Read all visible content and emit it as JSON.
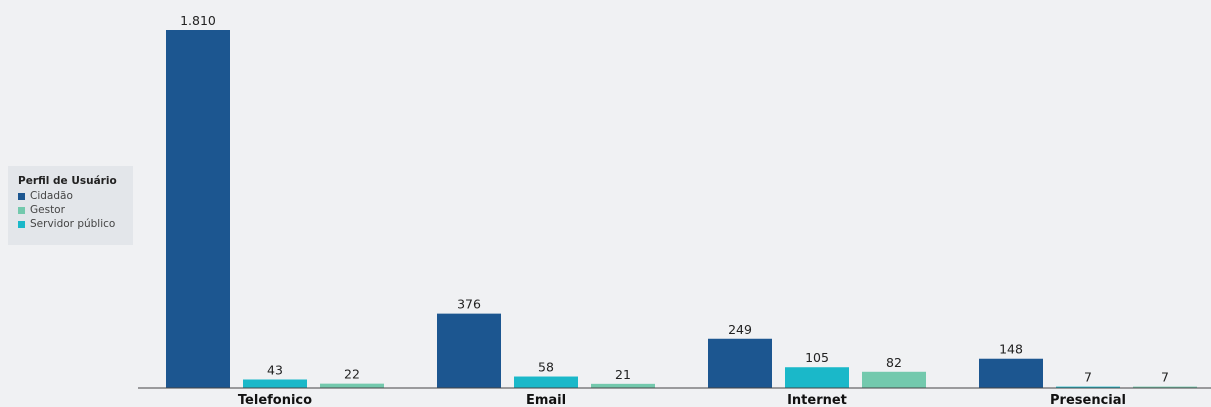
{
  "chart_data": {
    "type": "bar",
    "categories": [
      "Telefonico",
      "Email",
      "Internet",
      "Presencial"
    ],
    "series": [
      {
        "name": "Cidadão",
        "color": "#1c5690",
        "values": [
          1810,
          376,
          249,
          148
        ],
        "labels": [
          "1.810",
          "376",
          "249",
          "148"
        ]
      },
      {
        "name": "Servidor público",
        "color": "#1ab8c9",
        "values": [
          43,
          58,
          105,
          7
        ],
        "labels": [
          "43",
          "58",
          "105",
          "7"
        ]
      },
      {
        "name": "Gestor",
        "color": "#73c9ad",
        "values": [
          22,
          21,
          82,
          7
        ],
        "labels": [
          "22",
          "21",
          "82",
          "7"
        ]
      }
    ],
    "ylim": [
      0,
      1810
    ],
    "grid": false,
    "legend_placement": "left"
  },
  "legend": {
    "title": "Perfil de Usuário",
    "items": [
      {
        "label": "Cidadão",
        "color": "#1c5690"
      },
      {
        "label": "Gestor",
        "color": "#73c9ad"
      },
      {
        "label": "Servidor público",
        "color": "#1ab8c9"
      }
    ]
  }
}
